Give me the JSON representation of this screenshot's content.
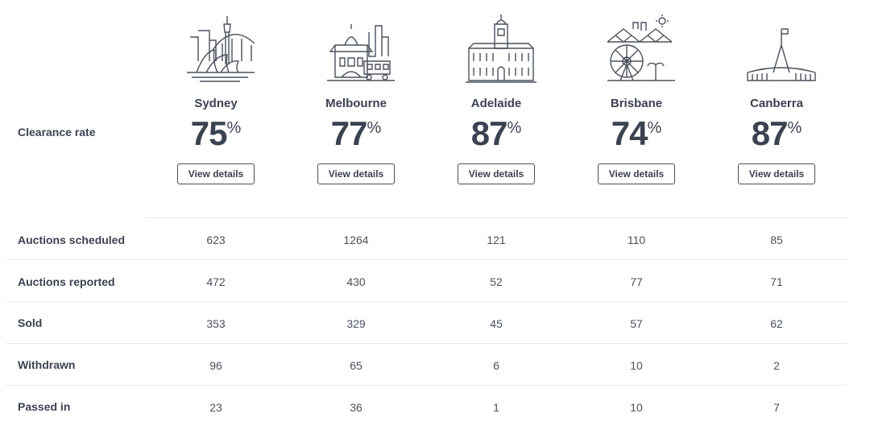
{
  "clearance_label": "Clearance rate",
  "percent_sign": "%",
  "view_details_label": "View details",
  "cities": [
    {
      "name": "Sydney",
      "rate": "75",
      "icon": "sydney-skyline-icon"
    },
    {
      "name": "Melbourne",
      "rate": "77",
      "icon": "melbourne-skyline-icon"
    },
    {
      "name": "Adelaide",
      "rate": "87",
      "icon": "adelaide-skyline-icon"
    },
    {
      "name": "Brisbane",
      "rate": "74",
      "icon": "brisbane-skyline-icon"
    },
    {
      "name": "Canberra",
      "rate": "87",
      "icon": "canberra-skyline-icon"
    }
  ],
  "rows": [
    {
      "label": "Auctions scheduled",
      "values": [
        "623",
        "1264",
        "121",
        "110",
        "85"
      ]
    },
    {
      "label": "Auctions reported",
      "values": [
        "472",
        "430",
        "52",
        "77",
        "71"
      ]
    },
    {
      "label": "Sold",
      "values": [
        "353",
        "329",
        "45",
        "57",
        "62"
      ]
    },
    {
      "label": "Withdrawn",
      "values": [
        "96",
        "65",
        "6",
        "10",
        "2"
      ]
    },
    {
      "label": "Passed in",
      "values": [
        "23",
        "36",
        "1",
        "10",
        "7"
      ]
    }
  ]
}
